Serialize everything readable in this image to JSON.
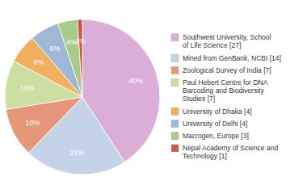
{
  "chart_data": {
    "type": "pie",
    "labels": [
      "Southwest University, School\nof Life Science [27]",
      "Mined from GenBank, NCBI [14]",
      "Zoological Survey of India [7]",
      "Paul Hebert Centre for DNA\nBarcoding and Biodiversity\nStudies [7]",
      "University of Dhaka [4]",
      "University of Delhi [4]",
      "Macrogen, Europe [3]",
      "Nepal Academy of Science and\nTechnology [1]"
    ],
    "values": [
      40,
      21,
      10,
      10,
      6,
      6,
      4,
      1
    ],
    "value_labels": [
      "40%",
      "21%",
      "10%",
      "10%",
      "6%",
      "6%",
      "4%",
      "1%"
    ],
    "colors": [
      "#dbaed8",
      "#c5d3e8",
      "#e8967a",
      "#ccdea0",
      "#f0b060",
      "#a0b8d8",
      "#a8cc88",
      "#cc5544"
    ],
    "data_labels": true,
    "legend": "right"
  }
}
